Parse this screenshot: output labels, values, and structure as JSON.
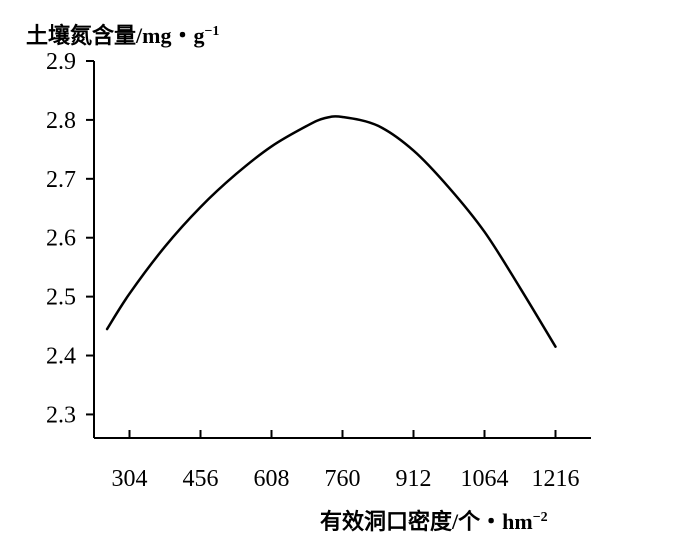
{
  "chart_data": {
    "type": "line",
    "title": "",
    "ylabel": "土壤氮含量/mg・g",
    "ylabel_unit_exponent": "−1",
    "xlabel": "有效洞口密度/个・hm",
    "xlabel_unit_exponent": "−2",
    "xlim": [
      228,
      1292
    ],
    "ylim": [
      2.26,
      2.9
    ],
    "grid": false,
    "legend": "none",
    "x_ticks": [
      304,
      456,
      608,
      760,
      912,
      1064,
      1216
    ],
    "x_tick_labels": [
      "304",
      "456",
      "608",
      "760",
      "912",
      "1064",
      "1216"
    ],
    "y_ticks": [
      2.3,
      2.4,
      2.5,
      2.6,
      2.7,
      2.8,
      2.9
    ],
    "y_tick_labels": [
      "2.3",
      "2.4",
      "2.5",
      "2.6",
      "2.7",
      "2.8",
      "2.9"
    ],
    "series": [
      {
        "color": "#000000",
        "points": [
          {
            "x": 256,
            "y": 2.445
          },
          {
            "x": 304,
            "y": 2.505
          },
          {
            "x": 380,
            "y": 2.585
          },
          {
            "x": 456,
            "y": 2.652
          },
          {
            "x": 532,
            "y": 2.708
          },
          {
            "x": 608,
            "y": 2.755
          },
          {
            "x": 684,
            "y": 2.79
          },
          {
            "x": 722,
            "y": 2.803
          },
          {
            "x": 760,
            "y": 2.805
          },
          {
            "x": 836,
            "y": 2.79
          },
          {
            "x": 912,
            "y": 2.748
          },
          {
            "x": 988,
            "y": 2.685
          },
          {
            "x": 1064,
            "y": 2.61
          },
          {
            "x": 1140,
            "y": 2.515
          },
          {
            "x": 1216,
            "y": 2.415
          }
        ]
      }
    ]
  }
}
